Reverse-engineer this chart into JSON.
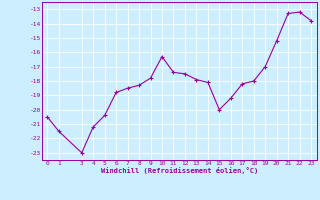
{
  "xlabel": "Windchill (Refroidissement éolien,°C)",
  "x_values": [
    0,
    1,
    3,
    4,
    5,
    6,
    7,
    8,
    9,
    10,
    11,
    12,
    13,
    14,
    15,
    16,
    17,
    18,
    19,
    20,
    21,
    22,
    23
  ],
  "y_values": [
    -20.5,
    -21.5,
    -23.0,
    -21.2,
    -20.4,
    -18.8,
    -18.5,
    -18.3,
    -17.8,
    -16.3,
    -17.4,
    -17.5,
    -17.9,
    -18.1,
    -20.0,
    -19.2,
    -18.2,
    -18.0,
    -17.0,
    -15.2,
    -13.3,
    -13.2,
    -13.8
  ],
  "ylim": [
    -23.5,
    -12.5
  ],
  "xlim": [
    -0.5,
    23.5
  ],
  "yticks": [
    -13,
    -14,
    -15,
    -16,
    -17,
    -18,
    -19,
    -20,
    -21,
    -22,
    -23
  ],
  "xticks": [
    0,
    1,
    3,
    4,
    5,
    6,
    7,
    8,
    9,
    10,
    11,
    12,
    13,
    14,
    15,
    16,
    17,
    18,
    19,
    20,
    21,
    22,
    23
  ],
  "line_color": "#990099",
  "marker": "+",
  "bg_color": "#cceeff",
  "grid_color": "#ffffff",
  "label_color": "#990099",
  "markersize": 3,
  "linewidth": 0.8,
  "xlabel_fontsize": 5.0,
  "tick_fontsize": 4.5
}
